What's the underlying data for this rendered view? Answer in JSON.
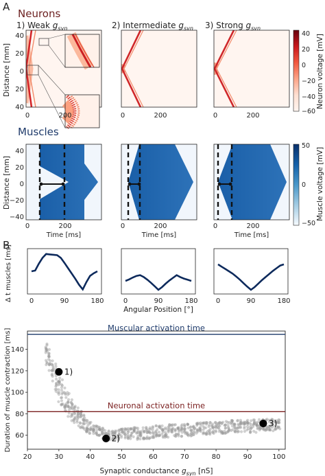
{
  "panel_labels": {
    "a": "A",
    "b": "B"
  },
  "neurons": {
    "heading": "Neurons",
    "heading_color": "#6b1f1f",
    "panels": [
      {
        "title_prefix": "1) Weak ",
        "title_var": "g",
        "title_sub": "syn"
      },
      {
        "title_prefix": "2) Intermediate ",
        "title_var": "g",
        "title_sub": "syn"
      },
      {
        "title_prefix": "3) Strong ",
        "title_var": "g",
        "title_sub": "syn"
      }
    ],
    "ylabel": "Distance [mm]",
    "yticks": [
      "40",
      "20",
      "0",
      "20",
      "40"
    ],
    "xticks": [
      "0",
      "200"
    ],
    "colorbar": {
      "label": "Neuron voltage [mV]",
      "ticks": [
        "40",
        "20",
        "0",
        "−20",
        "−40",
        "−60"
      ],
      "colors": [
        "#67000d",
        "#c9181d",
        "#f1583f",
        "#fca488",
        "#fee0d2",
        "#fff5f0"
      ]
    }
  },
  "muscles": {
    "heading": "Muscles",
    "heading_color": "#1f3b6b",
    "ylabel": "Distance [mm]",
    "yticks": [
      "40",
      "20",
      "0",
      "−20",
      "−40"
    ],
    "xticks": [
      "0",
      "200"
    ],
    "xlabel": "Time [ms]",
    "colorbar": {
      "label": "Muscle voltage [mV]",
      "ticks": [
        "50",
        "0",
        "−50"
      ],
      "colors": [
        "#08306b",
        "#1561a9",
        "#4a98c9",
        "#a3cce3",
        "#f7fbff"
      ]
    }
  },
  "delta": {
    "ylabel": "Δ t muscles [ms]",
    "xlabel": "Angular Position [°]",
    "xticks": [
      "0",
      "90",
      "180"
    ],
    "line_color": "#0d2a5c"
  },
  "chart_data": [
    {
      "type": "line",
      "panel": "A-delta-1",
      "x": [
        0,
        10,
        20,
        30,
        40,
        50,
        60,
        70,
        80,
        90,
        100,
        110,
        120,
        130,
        140,
        150,
        160,
        170,
        180
      ],
      "y": [
        50,
        52,
        70,
        85,
        95,
        94,
        93,
        92,
        85,
        72,
        58,
        44,
        30,
        15,
        3,
        22,
        38,
        45,
        50
      ],
      "ylim": [
        0,
        100
      ]
    },
    {
      "type": "line",
      "panel": "A-delta-2",
      "x": [
        0,
        10,
        20,
        30,
        40,
        50,
        60,
        70,
        80,
        90,
        100,
        110,
        120,
        130,
        140,
        150,
        160,
        170,
        180
      ],
      "y": [
        25,
        29,
        34,
        38,
        40,
        35,
        28,
        20,
        11,
        2,
        9,
        18,
        26,
        33,
        40,
        35,
        31,
        28,
        25
      ],
      "ylim": [
        0,
        100
      ]
    },
    {
      "type": "line",
      "panel": "A-delta-3",
      "x": [
        0,
        10,
        20,
        30,
        40,
        50,
        60,
        70,
        80,
        90,
        100,
        110,
        120,
        130,
        140,
        150,
        160,
        170,
        180
      ],
      "y": [
        68,
        62,
        56,
        50,
        44,
        36,
        28,
        19,
        10,
        2,
        9,
        18,
        27,
        35,
        43,
        51,
        58,
        65,
        68
      ],
      "ylim": [
        0,
        100
      ]
    },
    {
      "type": "scatter",
      "panel": "B",
      "xlabel_prefix": "Synaptic conductance ",
      "xlabel_var": "g",
      "xlabel_sub": "syn",
      "xlabel_suffix": " [nS]",
      "ylabel": "Duration of muscle contraction [ms]",
      "xlim": [
        20,
        102
      ],
      "ylim": [
        47,
        157
      ],
      "xticks": [
        "20",
        "30",
        "40",
        "50",
        "60",
        "70",
        "80",
        "90",
        "100"
      ],
      "yticks": [
        "60",
        "80",
        "100",
        "120",
        "140"
      ],
      "hlines": [
        {
          "label": "Muscular activation time",
          "y": 154,
          "color": "#1f3b6b"
        },
        {
          "label": "Neuronal activation time",
          "y": 82,
          "color": "#7a1f1f"
        }
      ],
      "highlights": [
        {
          "label": "1)",
          "x": 30,
          "y": 119
        },
        {
          "label": "2)",
          "x": 45,
          "y": 57
        },
        {
          "label": "3)",
          "x": 95,
          "y": 71
        }
      ],
      "trend": {
        "x": [
          26,
          28,
          30,
          32,
          34,
          36,
          38,
          40,
          42,
          44,
          46,
          48,
          50,
          55,
          60,
          65,
          70,
          75,
          80,
          85,
          90,
          95,
          100
        ],
        "y": [
          135,
          122,
          105,
          93,
          84,
          77,
          72,
          67,
          64,
          62,
          60,
          60,
          61,
          62,
          63,
          64,
          65,
          66,
          67,
          68,
          68,
          69,
          70
        ],
        "spread": [
          12,
          12,
          14,
          13,
          11,
          9,
          7,
          6,
          5,
          5,
          5,
          5,
          5,
          6,
          6,
          6,
          6,
          6,
          6,
          6,
          6,
          6,
          6
        ]
      }
    }
  ]
}
